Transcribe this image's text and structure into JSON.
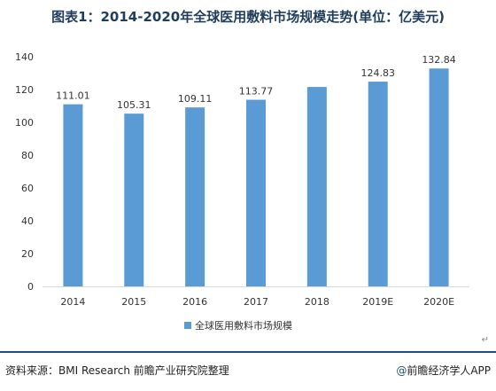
{
  "title": "图表1：2014-2020年全球医用敷料市场规模走势(单位：亿美元)",
  "chart_data": {
    "type": "bar",
    "categories": [
      "2014",
      "2015",
      "2016",
      "2017",
      "2018",
      "2019E",
      "2020E"
    ],
    "series": [
      {
        "name": "全球医用敷料市场规模",
        "values": [
          111.01,
          105.31,
          109.11,
          113.77,
          121.58,
          124.83,
          132.84
        ]
      }
    ],
    "data_labels": [
      "111.01",
      "105.31",
      "109.11",
      "113.77",
      "",
      "124.83",
      "132.84"
    ],
    "ylim": [
      0,
      140
    ],
    "yticks": [
      "0",
      "20",
      "40",
      "60",
      "80",
      "100",
      "120",
      "140"
    ],
    "grid": false,
    "legend": "bottom",
    "bar_color": "#5b9bd5"
  },
  "footer": {
    "source": "资料来源：BMI Research 前瞻产业研究院整理",
    "brand_symbol": "@",
    "brand": "前瞻经济学人APP"
  },
  "return_mark": "↵"
}
